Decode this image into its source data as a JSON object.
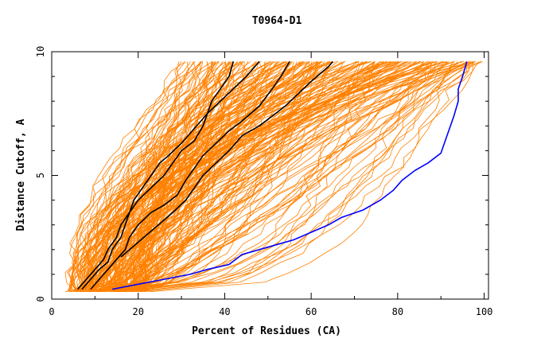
{
  "chart_data": {
    "type": "line",
    "title": "T0964-D1",
    "xlabel": "Percent of Residues (CA)",
    "ylabel": "Distance Cutoff, A",
    "xlim": [
      0,
      101
    ],
    "ylim": [
      0,
      10
    ],
    "xticks": [
      0,
      20,
      40,
      60,
      80,
      100
    ],
    "yticks": [
      0,
      5,
      10
    ],
    "grid": false,
    "colors": {
      "background": "#ffffff",
      "axes": "#000000",
      "bulk_series": "#ff8000",
      "highlight_black": "#000000",
      "highlight_blue": "#0000ff"
    },
    "highlighted_series": [
      {
        "color": "#000000",
        "x": [
          7,
          9,
          11,
          13,
          14,
          16,
          17,
          18,
          20,
          23,
          26,
          28,
          30,
          33,
          35,
          36,
          37,
          39,
          41,
          42
        ],
        "y": [
          0.4,
          0.8,
          1.2,
          1.5,
          2.0,
          2.5,
          3.0,
          3.5,
          4.0,
          4.5,
          5.0,
          5.5,
          6.0,
          6.4,
          7.0,
          7.5,
          8.0,
          8.5,
          9.0,
          9.6
        ]
      },
      {
        "color": "#000000",
        "x": [
          6,
          8,
          10,
          12,
          13,
          15,
          16,
          18,
          19,
          21,
          23,
          25,
          27,
          30,
          33,
          36,
          39,
          42,
          45,
          48
        ],
        "y": [
          0.4,
          0.8,
          1.2,
          1.6,
          2.0,
          2.5,
          3.0,
          3.5,
          4.0,
          4.5,
          5.0,
          5.5,
          5.8,
          6.3,
          6.9,
          7.5,
          8.0,
          8.5,
          9.0,
          9.6
        ]
      },
      {
        "color": "#000000",
        "x": [
          9,
          11,
          13,
          15,
          17,
          18,
          20,
          23,
          26,
          29,
          31,
          33,
          35,
          38,
          41,
          44,
          48,
          51,
          53,
          55
        ],
        "y": [
          0.4,
          0.8,
          1.2,
          1.6,
          2.0,
          2.5,
          3.0,
          3.5,
          3.8,
          4.2,
          4.8,
          5.3,
          5.8,
          6.3,
          6.8,
          7.2,
          7.8,
          8.5,
          9.0,
          9.6
        ]
      },
      {
        "color": "#000000",
        "x": [
          16,
          20,
          24,
          28,
          31,
          33,
          35,
          38,
          41,
          44,
          48,
          51,
          54,
          57,
          60,
          62,
          64,
          65
        ],
        "y": [
          1.7,
          2.3,
          2.9,
          3.5,
          4.0,
          4.5,
          5.0,
          5.5,
          6.0,
          6.6,
          7.0,
          7.4,
          7.8,
          8.3,
          8.8,
          9.1,
          9.4,
          9.6
        ]
      },
      {
        "color": "#0000ff",
        "x": [
          14,
          20,
          26,
          32,
          36,
          41,
          44,
          50,
          56,
          60,
          64,
          67,
          72,
          76,
          79,
          81,
          84,
          87,
          90,
          91,
          92,
          93,
          94,
          94,
          95,
          95.5,
          96
        ],
        "y": [
          0.4,
          0.6,
          0.8,
          1.0,
          1.2,
          1.4,
          1.8,
          2.1,
          2.4,
          2.7,
          3.0,
          3.3,
          3.6,
          4.0,
          4.4,
          4.8,
          5.2,
          5.5,
          5.9,
          6.4,
          6.9,
          7.4,
          8.0,
          8.5,
          9.0,
          9.3,
          9.6
        ]
      }
    ]
  }
}
